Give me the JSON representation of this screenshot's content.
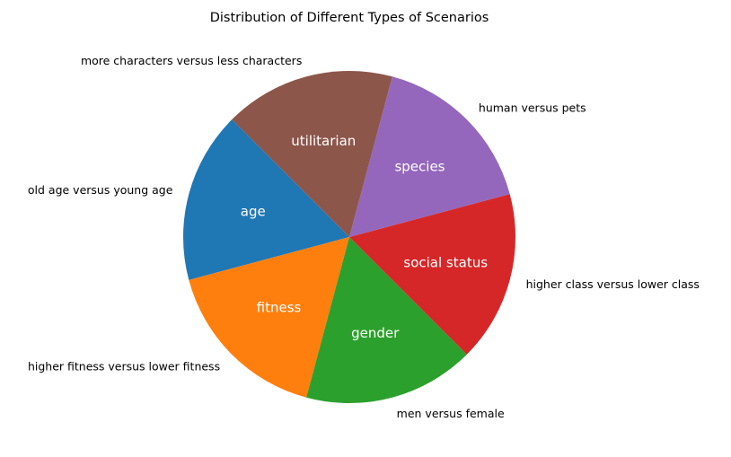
{
  "chart_data": {
    "type": "pie",
    "title": "Distribution of Different Types of Scenarios",
    "start_angle_deg": 135,
    "direction": "counterclockwise",
    "slices": [
      {
        "label": "old age versus young age",
        "category": "age",
        "value": 1,
        "color": "#1f77b4"
      },
      {
        "label": "higher fitness versus lower fitness",
        "category": "fitness",
        "value": 1,
        "color": "#ff7f0e"
      },
      {
        "label": "men versus female",
        "category": "gender",
        "value": 1,
        "color": "#2ca02c"
      },
      {
        "label": "higher class versus lower class",
        "category": "social status",
        "value": 1,
        "color": "#d62728"
      },
      {
        "label": "human versus pets",
        "category": "species",
        "value": 1,
        "color": "#9467bd"
      },
      {
        "label": "more characters versus less characters",
        "category": "utilitarian",
        "value": 1,
        "color": "#8c564b"
      }
    ]
  }
}
